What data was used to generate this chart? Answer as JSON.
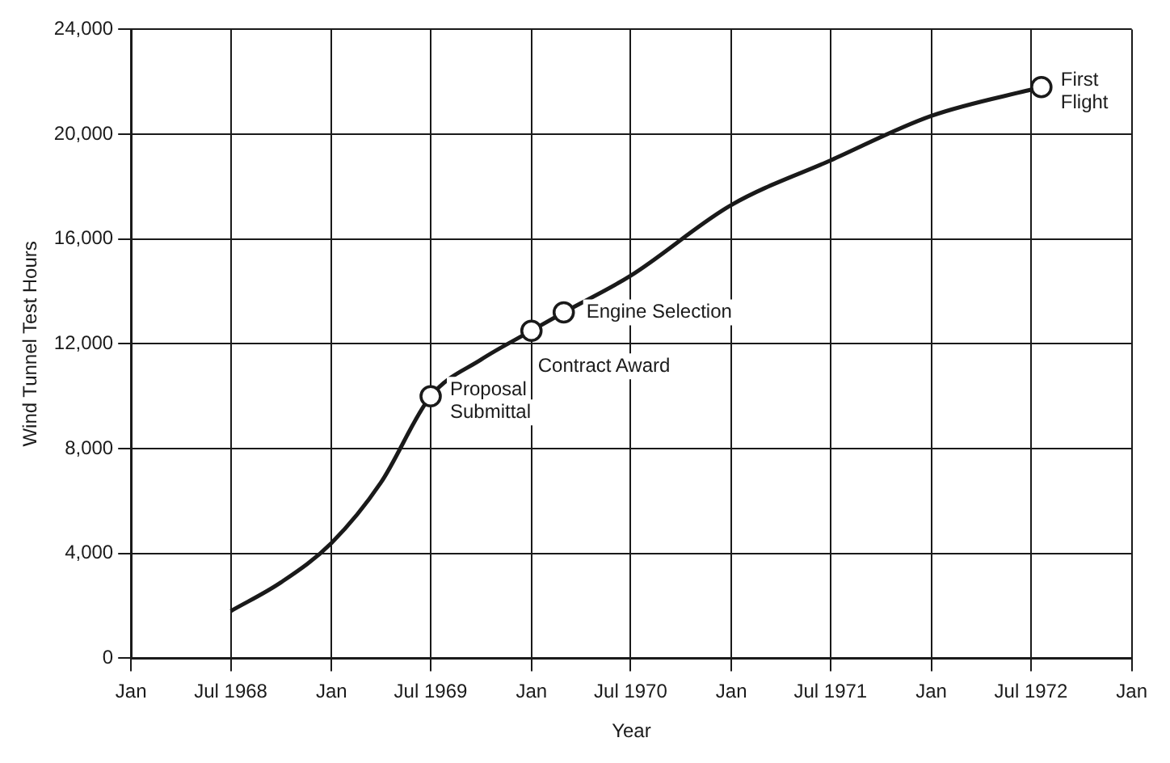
{
  "chart_data": {
    "type": "line",
    "xlabel": "Year",
    "ylabel": "Wind Tunnel Test Hours",
    "xlim": [
      "1968-01",
      "1973-01"
    ],
    "ylim": [
      0,
      24000
    ],
    "xticks": [
      {
        "value": "1968-01",
        "label": "Jan"
      },
      {
        "value": "1968-07",
        "label": "Jul 1968"
      },
      {
        "value": "1969-01",
        "label": "Jan"
      },
      {
        "value": "1969-07",
        "label": "Jul 1969"
      },
      {
        "value": "1970-01",
        "label": "Jan"
      },
      {
        "value": "1970-07",
        "label": "Jul 1970"
      },
      {
        "value": "1971-01",
        "label": "Jan"
      },
      {
        "value": "1971-07",
        "label": "Jul 1971"
      },
      {
        "value": "1972-01",
        "label": "Jan"
      },
      {
        "value": "1972-07",
        "label": "Jul 1972"
      },
      {
        "value": "1973-01",
        "label": "Jan"
      }
    ],
    "yticks": [
      {
        "value": 0,
        "label": "0"
      },
      {
        "value": 4000,
        "label": "4,000"
      },
      {
        "value": 8000,
        "label": "8,000"
      },
      {
        "value": 12000,
        "label": "12,000"
      },
      {
        "value": 16000,
        "label": "16,000"
      },
      {
        "value": 20000,
        "label": "20,000"
      },
      {
        "value": 24000,
        "label": "24,000"
      }
    ],
    "grid": true,
    "legend": false,
    "marker": "none",
    "line_style": "solid",
    "series": [
      {
        "color": "#1a1a1a",
        "x": [
          "1968-07",
          "1968-10",
          "1969-01",
          "1969-04",
          "1969-07",
          "1969-10",
          "1970-01",
          "1970-03",
          "1970-07",
          "1971-01",
          "1971-07",
          "1972-01",
          "1972-07-20"
        ],
        "values": [
          1800,
          2900,
          4400,
          6700,
          10000,
          11400,
          12500,
          13200,
          14600,
          17300,
          19000,
          20700,
          21800
        ]
      },
      {
        "type": "scatter",
        "color": "#1a1a1a",
        "marker": "circle",
        "x": [
          "1969-07",
          "1970-01",
          "1970-03",
          "1972-07-20"
        ],
        "values": [
          10000,
          12500,
          13200,
          21800
        ]
      }
    ],
    "annotations": [
      {
        "text": "Proposal\nSubmittal",
        "x": "1969-07",
        "y": 10000
      },
      {
        "text": "Contract Award",
        "x": "1970-01",
        "y": 12500
      },
      {
        "text": "Engine Selection",
        "x": "1970-03",
        "y": 13200
      },
      {
        "text": "First\nFlight",
        "x": "1972-07-20",
        "y": 21800
      }
    ]
  }
}
